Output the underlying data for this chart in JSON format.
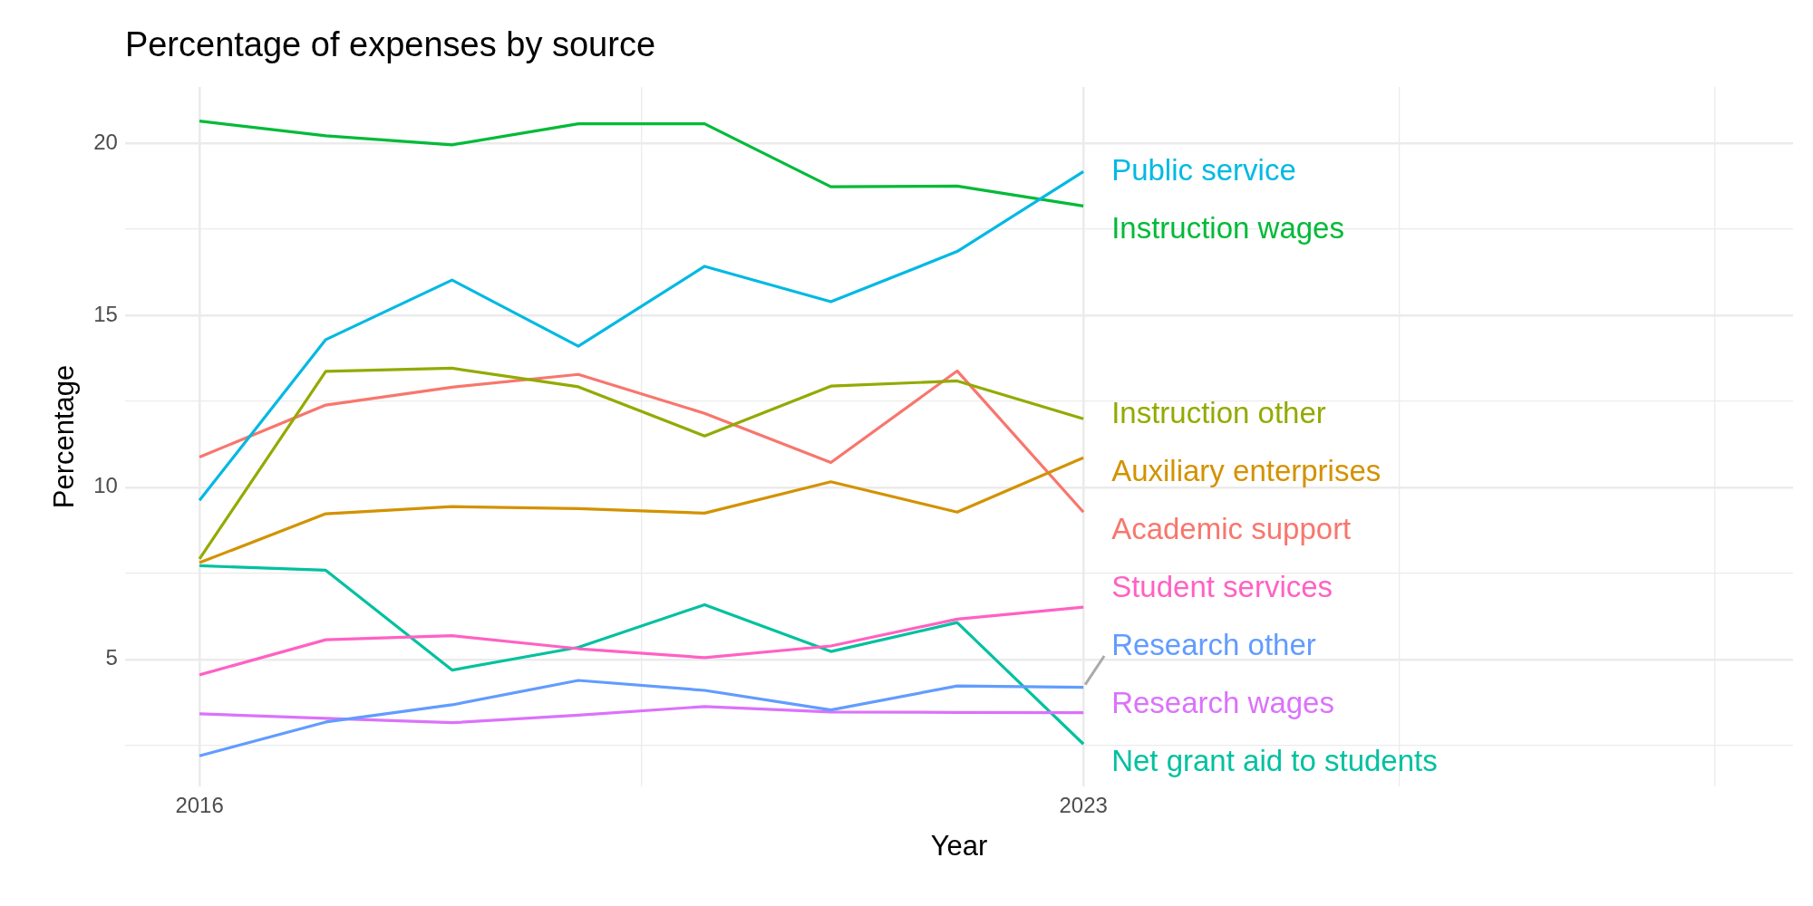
{
  "chart_data": {
    "type": "line",
    "title": "Percentage of expenses by source",
    "xlabel": "Year",
    "ylabel": "Percentage",
    "x": [
      2016,
      2017,
      2018,
      2019,
      2020,
      2021,
      2022,
      2023
    ],
    "xlim": [
      2015.41,
      2028.62
    ],
    "xticks": [
      2016,
      {
        "value": 2019.5,
        "label": null
      },
      2023,
      {
        "value": 2025.5,
        "label": null
      },
      {
        "value": 2028,
        "label": null
      }
    ],
    "ylim": [
      1.31,
      21.63
    ],
    "yticks": [
      {
        "value": 2.5,
        "label": null
      },
      5,
      {
        "value": 7.5,
        "label": null
      },
      10,
      {
        "value": 12.5,
        "label": null
      },
      15,
      {
        "value": 17.5,
        "label": null
      },
      20
    ],
    "grid": true,
    "legend": false,
    "series": [
      {
        "name": "Public service",
        "color": "#00b9e3",
        "values": [
          9.62,
          14.29,
          16.02,
          14.1,
          16.42,
          15.39,
          16.85,
          19.17
        ]
      },
      {
        "name": "Instruction wages",
        "color": "#00ba38",
        "values": [
          20.64,
          20.21,
          19.95,
          20.56,
          20.56,
          18.73,
          18.75,
          18.17
        ]
      },
      {
        "name": "Instruction other",
        "color": "#93aa00",
        "values": [
          7.92,
          13.37,
          13.46,
          12.92,
          11.49,
          12.94,
          13.09,
          11.99
        ]
      },
      {
        "name": "Auxiliary enterprises",
        "color": "#d39200",
        "values": [
          7.81,
          9.23,
          9.44,
          9.38,
          9.25,
          10.16,
          9.28,
          10.86
        ]
      },
      {
        "name": "Academic support",
        "color": "#f8766d",
        "values": [
          10.88,
          12.39,
          12.91,
          13.28,
          12.15,
          10.72,
          13.38,
          9.28
        ]
      },
      {
        "name": "Student services",
        "color": "#ff61c3",
        "values": [
          4.55,
          5.57,
          5.69,
          5.31,
          5.05,
          5.39,
          6.17,
          6.52
        ]
      },
      {
        "name": "Research other",
        "color": "#619cff",
        "values": [
          2.2,
          3.18,
          3.68,
          4.39,
          4.1,
          3.53,
          4.23,
          4.19
        ]
      },
      {
        "name": "Research wages",
        "color": "#db72fb",
        "values": [
          3.42,
          3.29,
          3.16,
          3.38,
          3.63,
          3.47,
          3.46,
          3.45
        ]
      },
      {
        "name": "Net grant aid to students",
        "color": "#00c19f",
        "values": [
          7.72,
          7.59,
          4.69,
          5.35,
          6.59,
          5.23,
          6.07,
          2.54
        ]
      }
    ]
  }
}
